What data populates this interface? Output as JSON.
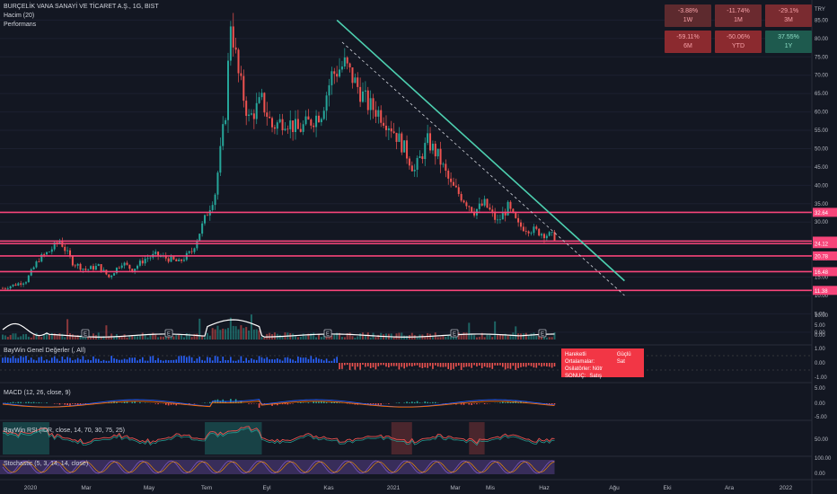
{
  "header": {
    "symbol_line": "BURÇELİK VANA SANAYİ VE TİCARET A.Ş., 1G, BIST",
    "volume_label": "Hacim (20)",
    "performance_label": "Performans",
    "currency": "TRY"
  },
  "performance": [
    {
      "value": "-3.88%",
      "period": "1W",
      "color": "#5d2a2e"
    },
    {
      "value": "-11.74%",
      "period": "1M",
      "color": "#6b2a2f"
    },
    {
      "value": "-29.1%",
      "period": "3M",
      "color": "#7a2b30"
    },
    {
      "value": "-59.11%",
      "period": "6M",
      "color": "#8b2a2f"
    },
    {
      "value": "-50.06%",
      "period": "YTD",
      "color": "#8b2a2f"
    },
    {
      "value": "37.55%",
      "period": "1Y",
      "color": "#1e5a4e"
    }
  ],
  "indicators": {
    "baywin_title": "BayWin Genel Değerler (, All)",
    "macd_title": "MACD (12, 26, close, 9)",
    "rsi_title": "BayWin RSI (IDR, close, 14, 70, 30, 75, 25)",
    "stoch_title": "Stochastic (5, 3, 14, 14, close)"
  },
  "signal_box": {
    "row1_label": "Hareketli Ortalamalar:",
    "row1_value": "Güçlü Sat",
    "row2_label": "Osilatörler: Nötr",
    "row3_label": "SONUÇ:",
    "row3_value": "Satış"
  },
  "colors": {
    "up": "#26a69a",
    "down": "#ef5350",
    "hline": "#f7457a",
    "trend": "#4dd0b0",
    "volume_line": "#ffffff",
    "signal": "#f23645"
  },
  "chart_data": {
    "type": "candlestick",
    "x_ticks": [
      "2020",
      "Mar",
      "May",
      "Tem",
      "Eyl",
      "Kas",
      "2021",
      "Mar",
      "Mis",
      "Haz",
      "Ağu",
      "Eki",
      "Ara",
      "2022"
    ],
    "price_axis": {
      "ticks": [
        0.0,
        5.0,
        10.0,
        15.0,
        20.0,
        25.0,
        30.0,
        35.0,
        40.0,
        45.0,
        50.0,
        55.0,
        60.0,
        65.0,
        70.0,
        75.0,
        80.0,
        85.0,
        90.0
      ],
      "range": [
        -2,
        90
      ]
    },
    "horizontal_levels": [
      32.64,
      24.8,
      24.12,
      20.78,
      16.48,
      11.38
    ],
    "level_labels": [
      "32.64",
      "24.80",
      "24.12",
      "20.78",
      "16.48",
      "11.38"
    ],
    "price_path": [
      [
        0,
        12
      ],
      [
        5,
        13
      ],
      [
        9,
        14
      ],
      [
        14,
        20
      ],
      [
        18,
        22
      ],
      [
        22,
        25
      ],
      [
        27,
        19
      ],
      [
        32,
        17
      ],
      [
        37,
        18
      ],
      [
        41,
        15
      ],
      [
        46,
        19
      ],
      [
        50,
        17
      ],
      [
        55,
        20
      ],
      [
        59,
        21
      ],
      [
        64,
        20
      ],
      [
        68,
        19
      ],
      [
        73,
        22
      ],
      [
        77,
        29
      ],
      [
        82,
        38
      ],
      [
        86,
        60
      ],
      [
        88,
        85
      ],
      [
        91,
        70
      ],
      [
        95,
        58
      ],
      [
        100,
        63
      ],
      [
        104,
        56
      ],
      [
        109,
        58
      ],
      [
        114,
        55
      ],
      [
        118,
        57
      ],
      [
        123,
        60
      ],
      [
        127,
        70
      ],
      [
        132,
        73
      ],
      [
        136,
        68
      ],
      [
        141,
        62
      ],
      [
        145,
        60
      ],
      [
        150,
        56
      ],
      [
        155,
        50
      ],
      [
        159,
        44
      ],
      [
        164,
        52
      ],
      [
        168,
        48
      ],
      [
        173,
        40
      ],
      [
        177,
        37
      ],
      [
        182,
        33
      ],
      [
        186,
        35
      ],
      [
        191,
        30
      ],
      [
        195,
        34
      ],
      [
        199,
        29
      ],
      [
        204,
        28
      ],
      [
        208,
        27
      ],
      [
        213,
        26
      ]
    ],
    "trendline": {
      "from": [
        129,
        85
      ],
      "to": [
        240,
        14
      ]
    },
    "dashed_trendline": {
      "from": [
        131,
        79
      ],
      "to": [
        240,
        10
      ]
    },
    "volume_axis": {
      "ticks": [
        0.0,
        5.0,
        10.0
      ]
    },
    "baywin_axis": {
      "ticks": [
        1.0,
        0.0,
        -1.0
      ],
      "labels": [
        "1.00",
        "0.00",
        "-1.00"
      ]
    },
    "macd_axis": {
      "ticks": [
        5.0,
        0.0,
        -5.0
      ],
      "labels": [
        "5.00",
        "0.00",
        "-5.00"
      ]
    },
    "rsi_axis": {
      "ticks": [
        50.0
      ],
      "labels": [
        "50.00"
      ]
    },
    "stoch_axis": {
      "ticks": [
        100.0,
        0.0
      ],
      "labels": [
        "100.00",
        "0.00"
      ]
    },
    "earnings_markers": [
      "E",
      "E",
      "E",
      "E",
      "E",
      "E"
    ]
  }
}
